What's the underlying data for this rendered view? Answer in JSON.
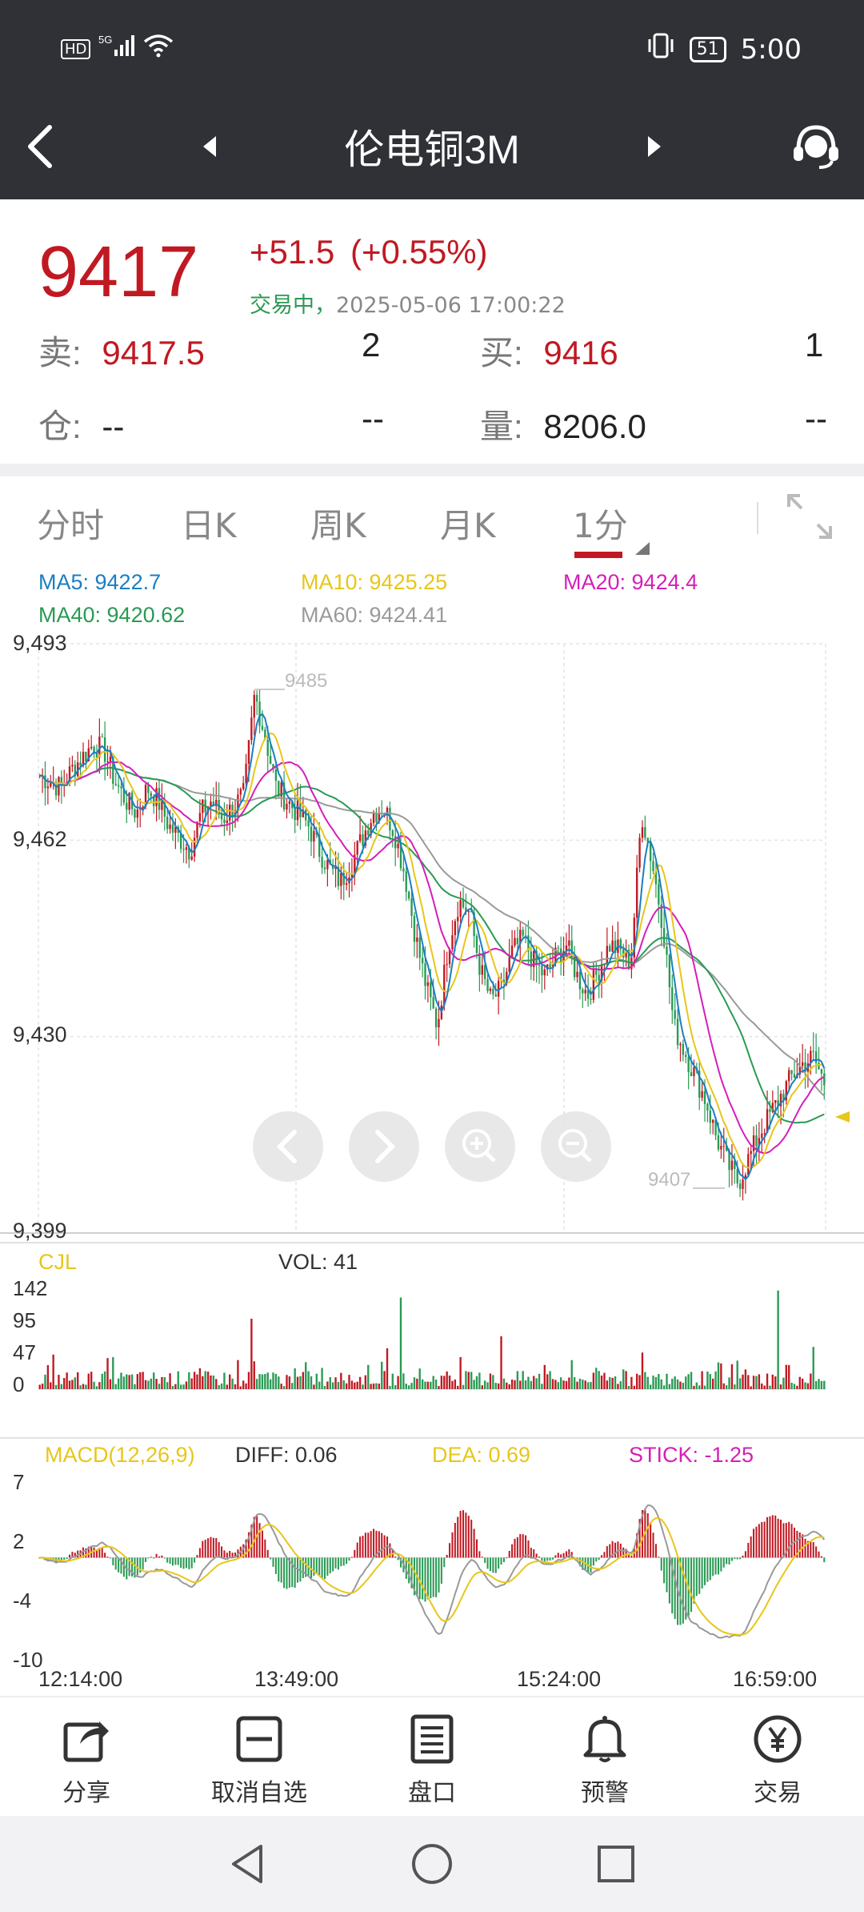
{
  "status_bar": {
    "left_indicators": "HD ⁵ᴳ ▮▮▮▮",
    "battery": "51",
    "time": "5:00",
    "icons": [
      "hd-icon",
      "5g-signal-icon",
      "wifi-icon",
      "vibrate-icon",
      "battery-icon"
    ]
  },
  "nav": {
    "title": "伦电铜3M",
    "icons": [
      "back-arrow-icon",
      "prev-triangle-icon",
      "next-triangle-icon",
      "customer-service-icon"
    ]
  },
  "quote": {
    "price": "9417",
    "change": "+51.5",
    "change_pct": "(+0.55%)",
    "status": "交易中，",
    "datetime": "2025-05-06 17:00:22",
    "sell_label": "卖:",
    "sell_price": "9417.5",
    "sell_qty": "2",
    "buy_label": "买:",
    "buy_price": "9416",
    "buy_qty": "1",
    "oi_label": "仓:",
    "oi_value": "--",
    "oi_change": "--",
    "vol_label": "量:",
    "vol_value": "8206.0",
    "vol_change": "--"
  },
  "tabs": [
    "分时",
    "日K",
    "周K",
    "月K",
    "1分"
  ],
  "ma_legend": {
    "ma5": "MA5: 9422.7",
    "ma10": "MA10: 9425.25",
    "ma20": "MA20: 9424.4",
    "ma40": "MA40: 9420.62",
    "ma60": "MA60: 9424.41"
  },
  "colors": {
    "up": "#c01922",
    "down": "#2a9a54",
    "ma5": "#1a7fc1",
    "ma10": "#e8c61a",
    "ma20": "#d41fb8",
    "ma40": "#2a9a54",
    "ma60": "#9a9a9a"
  },
  "kline_panel": {
    "y_ticks": [
      "9,493",
      "9,462",
      "9,430",
      "9,399"
    ],
    "high_label": "9485",
    "low_label": "9407"
  },
  "vol_panel": {
    "label": "CJL",
    "vol_text": "VOL: 41",
    "y_ticks": [
      "142",
      "95",
      "47",
      "0"
    ]
  },
  "macd_panel": {
    "label": "MACD(12,26,9)",
    "diff": "DIFF: 0.06",
    "dea": "DEA: 0.69",
    "stick": "STICK: -1.25",
    "y_ticks": [
      "7",
      "2",
      "-4",
      "-10"
    ]
  },
  "x_ticks": [
    "12:14:00",
    "13:49:00",
    "15:24:00",
    "16:59:00"
  ],
  "bottom_nav": [
    {
      "label": "分享",
      "icon": "share-icon"
    },
    {
      "label": "取消自选",
      "icon": "remove-watchlist-icon"
    },
    {
      "label": "盘口",
      "icon": "orderbook-icon"
    },
    {
      "label": "预警",
      "icon": "bell-icon"
    },
    {
      "label": "交易",
      "icon": "yen-trade-icon"
    }
  ],
  "chart_data": {
    "type": "candlestick",
    "interval": "1分",
    "x_range": [
      "12:14:00",
      "16:59:00"
    ],
    "price_range": [
      9399,
      9493
    ],
    "price_series_approx": [
      9472,
      9471,
      9470,
      9473,
      9475,
      9477,
      9476,
      9471,
      9468,
      9466,
      9470,
      9468,
      9464,
      9462,
      9460,
      9466,
      9468,
      9465,
      9467,
      9469,
      9485,
      9478,
      9470,
      9468,
      9466,
      9464,
      9460,
      9457,
      9455,
      9458,
      9462,
      9466,
      9467,
      9463,
      9456,
      9446,
      9438,
      9432,
      9445,
      9452,
      9450,
      9441,
      9436,
      9438,
      9444,
      9446,
      9442,
      9440,
      9443,
      9445,
      9440,
      9437,
      9441,
      9445,
      9444,
      9442,
      9466,
      9458,
      9448,
      9432,
      9428,
      9424,
      9420,
      9414,
      9410,
      9407,
      9411,
      9415,
      9418,
      9421,
      9424,
      9426,
      9427,
      9423
    ],
    "volume_range": [
      0,
      142
    ],
    "macd_range": [
      -10,
      7
    ]
  }
}
